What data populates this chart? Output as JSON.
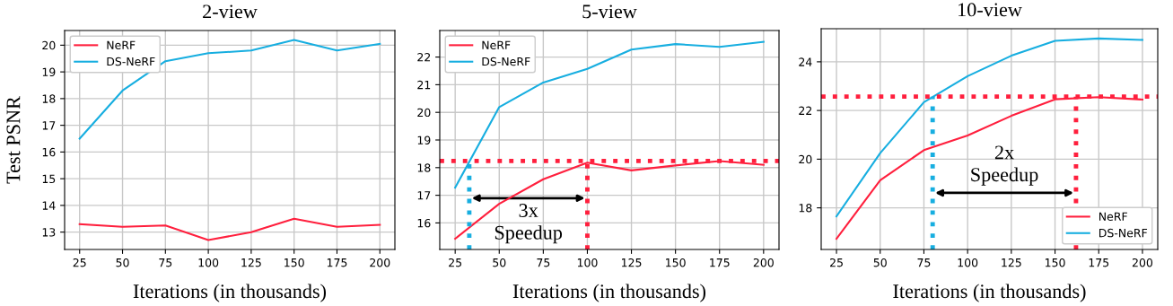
{
  "chart_data": [
    {
      "type": "line",
      "title": "2-view",
      "xlabel": "Iterations (in thousands)",
      "ylabel": "Test PSNR",
      "x": [
        25,
        50,
        75,
        100,
        125,
        150,
        175,
        200
      ],
      "series": [
        {
          "name": "NeRF",
          "color": "#ff1f3d",
          "values": [
            13.3,
            13.2,
            13.25,
            12.7,
            13.0,
            13.5,
            13.2,
            13.27
          ]
        },
        {
          "name": "DS-NeRF",
          "color": "#17aee0",
          "values": [
            16.5,
            18.3,
            19.4,
            19.7,
            19.8,
            20.2,
            19.8,
            20.05
          ]
        }
      ],
      "xlim": [
        16.25,
        208.75
      ],
      "xticks": [
        25,
        50,
        75,
        100,
        125,
        150,
        175,
        200
      ],
      "ylim": [
        12.35,
        20.55
      ],
      "yticks": [
        13,
        14,
        15,
        16,
        17,
        18,
        19,
        20
      ],
      "grid": true,
      "legend": "top left",
      "marker": "none",
      "line_style": "solid"
    },
    {
      "type": "line",
      "title": "5-view",
      "xlabel": "Iterations (in thousands)",
      "x": [
        25,
        50,
        75,
        100,
        125,
        150,
        175,
        200
      ],
      "series": [
        {
          "name": "NeRF",
          "color": "#ff1f3d",
          "values": [
            15.43,
            16.69,
            17.58,
            18.18,
            17.9,
            18.08,
            18.24,
            18.1
          ]
        },
        {
          "name": "DS-NeRF",
          "color": "#17aee0",
          "values": [
            17.28,
            20.19,
            21.08,
            21.57,
            22.27,
            22.47,
            22.37,
            22.55
          ]
        }
      ],
      "xlim": [
        16.25,
        208.75
      ],
      "xticks": [
        25,
        50,
        75,
        100,
        125,
        150,
        175,
        200
      ],
      "ylim": [
        15.04,
        22.96
      ],
      "yticks": [
        16,
        17,
        18,
        19,
        20,
        21,
        22
      ],
      "ref_lines": [
        {
          "axis": "y",
          "value": 18.24,
          "color": "#ff1f3d",
          "line_style": "dotted"
        },
        {
          "axis": "x",
          "value": 33,
          "color": "#17aee0",
          "line_style": "dotted"
        },
        {
          "axis": "x",
          "value": 100,
          "color": "#ff1f3d",
          "line_style": "dotted"
        }
      ],
      "annotations": [
        "3x\nSpeedup"
      ],
      "grid": true,
      "legend": "top left",
      "marker": "none",
      "line_style": "solid"
    },
    {
      "type": "line",
      "title": "10-view",
      "xlabel": "Iterations (in thousands)",
      "x": [
        25,
        50,
        75,
        100,
        125,
        150,
        175,
        200
      ],
      "series": [
        {
          "name": "NeRF",
          "color": "#ff1f3d",
          "values": [
            16.73,
            19.13,
            20.37,
            20.97,
            21.78,
            22.46,
            22.55,
            22.45
          ]
        },
        {
          "name": "DS-NeRF",
          "color": "#17aee0",
          "values": [
            17.65,
            20.25,
            22.34,
            23.41,
            24.25,
            24.86,
            24.96,
            24.9
          ]
        }
      ],
      "xlim": [
        16.25,
        208.75
      ],
      "xticks": [
        25,
        50,
        75,
        100,
        125,
        150,
        175,
        200
      ],
      "ylim": [
        16.29,
        25.36
      ],
      "yticks": [
        18,
        20,
        22,
        24
      ],
      "ref_lines": [
        {
          "axis": "y",
          "value": 22.57,
          "color": "#ff1f3d",
          "line_style": "dotted"
        },
        {
          "axis": "x",
          "value": 80,
          "color": "#17aee0",
          "line_style": "dotted"
        },
        {
          "axis": "x",
          "value": 162,
          "color": "#ff1f3d",
          "line_style": "dotted"
        }
      ],
      "annotations": [
        "2x\nSpeedup"
      ],
      "grid": true,
      "legend": "bottom right",
      "marker": "none",
      "line_style": "solid"
    }
  ]
}
